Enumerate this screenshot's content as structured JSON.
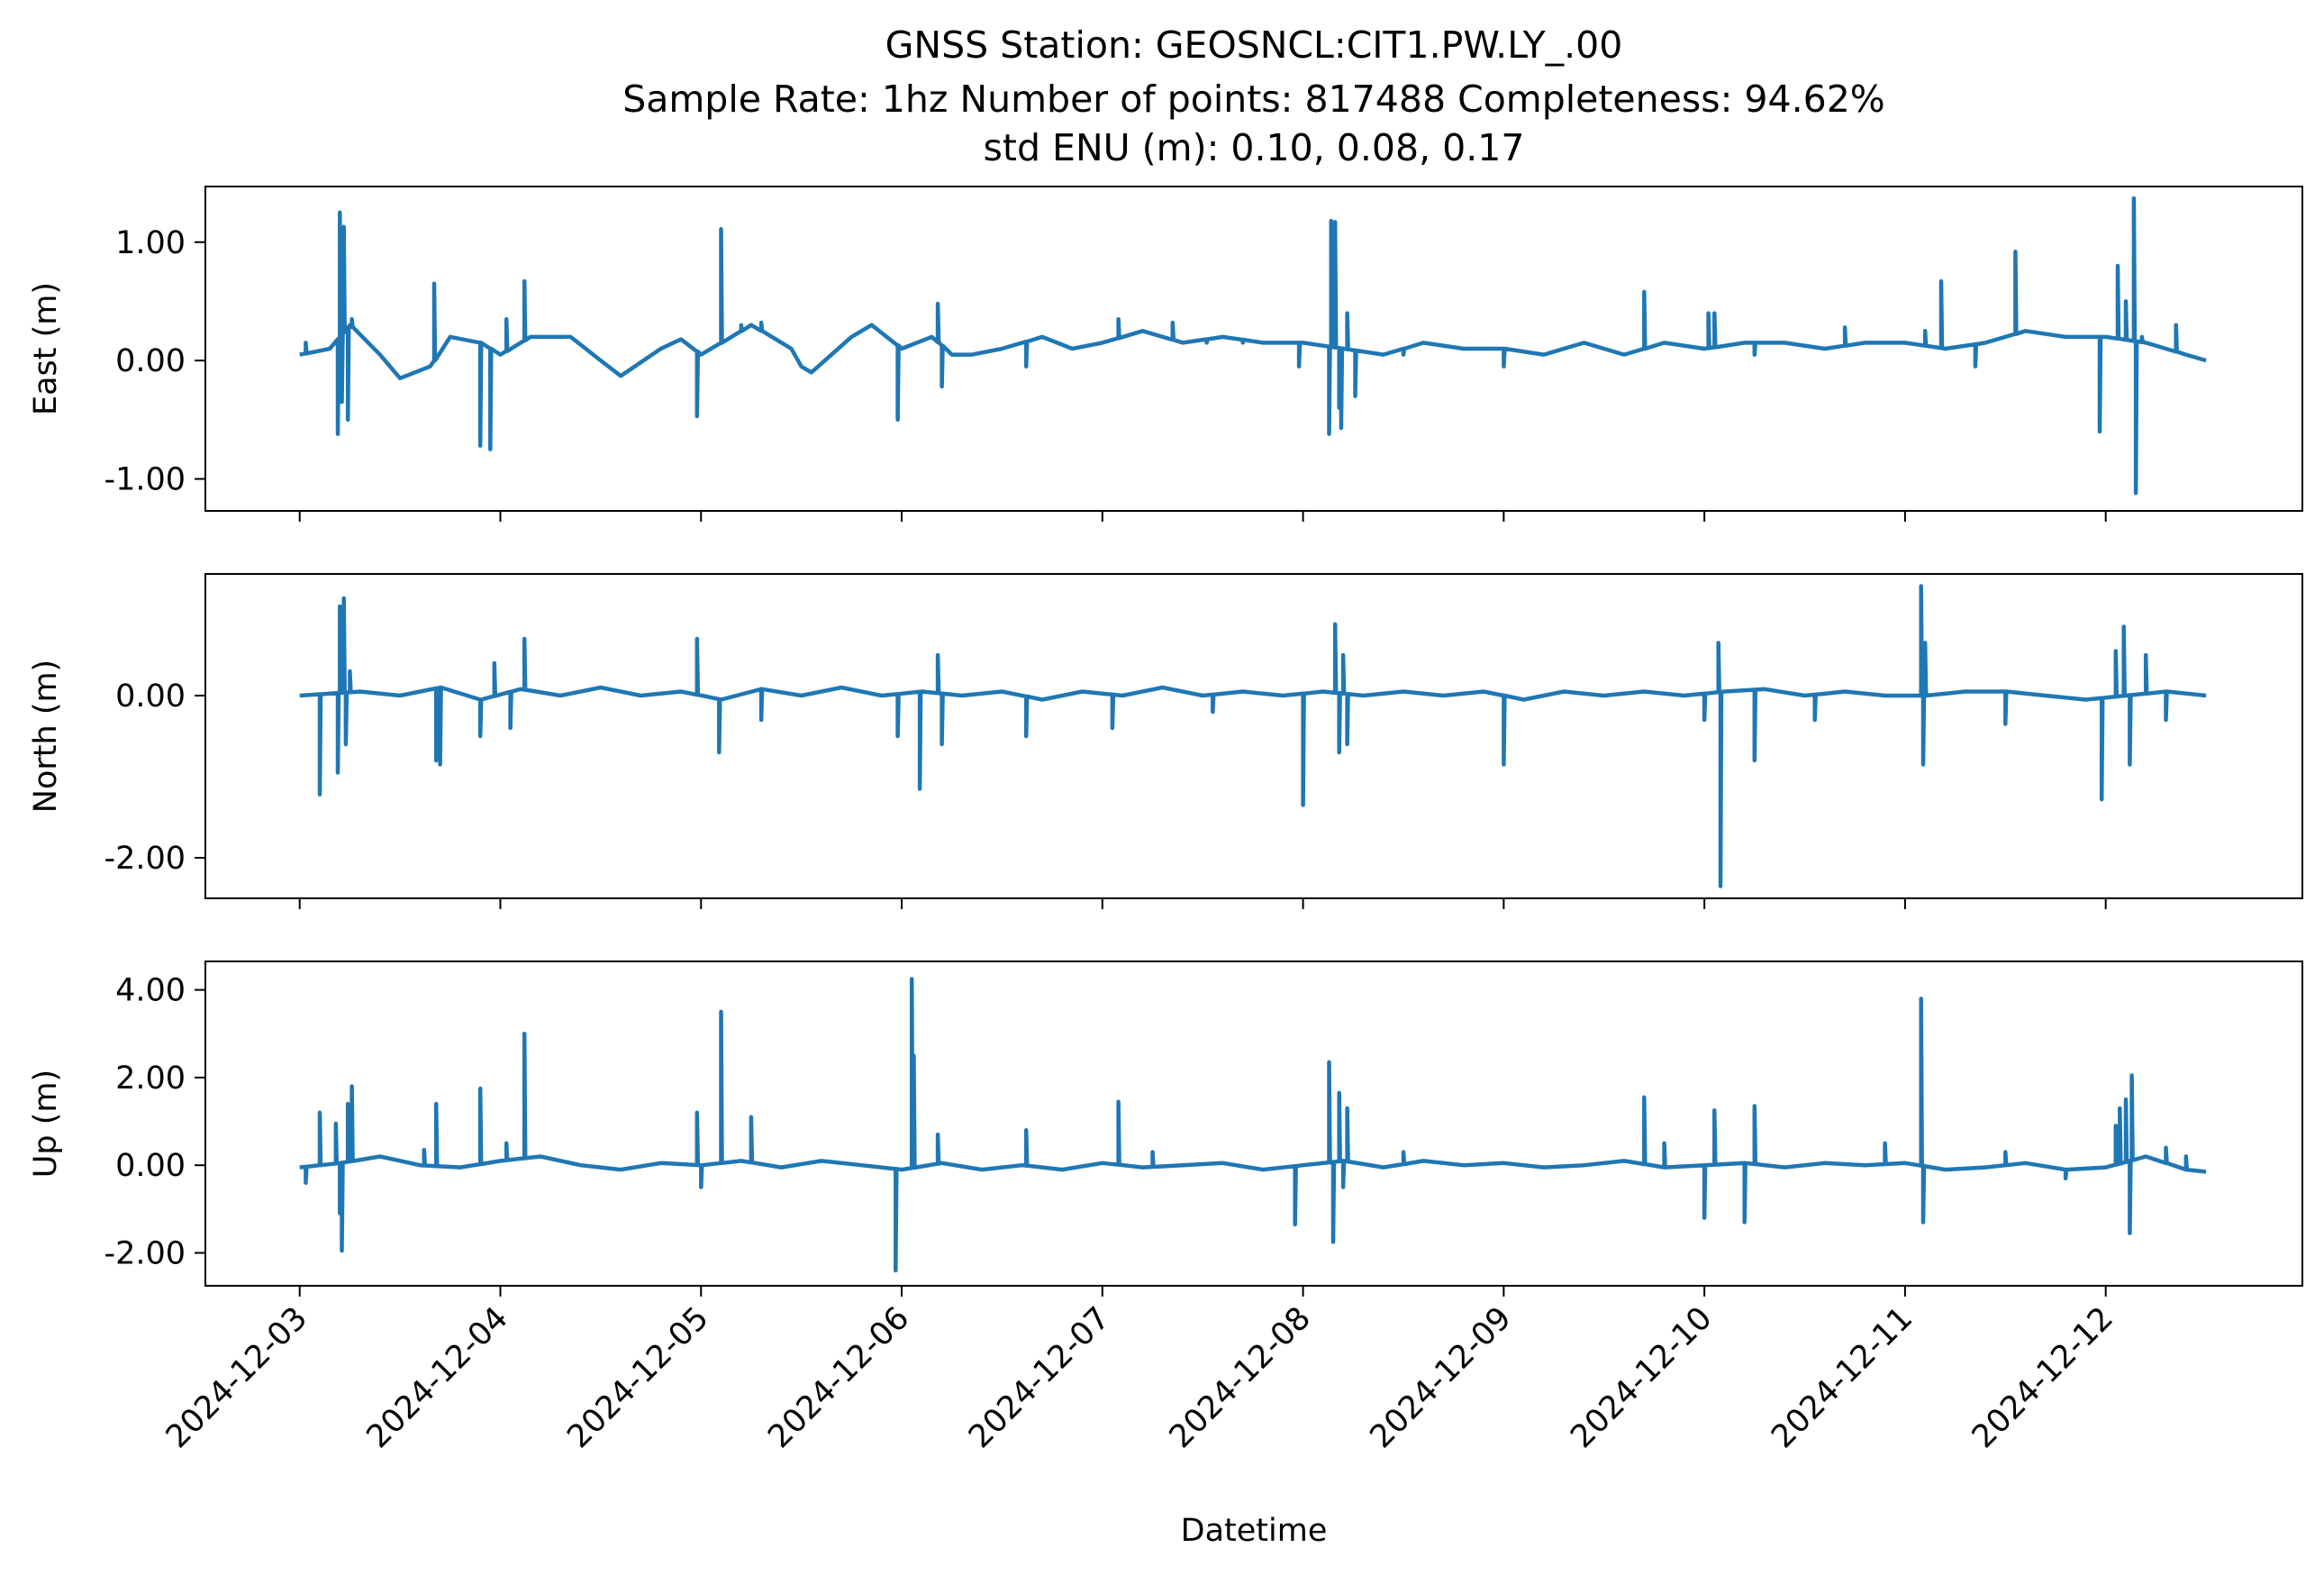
{
  "chart_data": {
    "type": "line",
    "title": "GNSS Station: GEOSNCL:CIT1.PW.LY_.00",
    "subtitle_line1": "Sample Rate: 1hz   Number of points: 817488    Completeness:  94.62%",
    "subtitle_line2": "std ENU (m):  0.10, 0.08, 0.17",
    "xlabel": "Datetime",
    "x_ticks": [
      "2024-12-03",
      "2024-12-04",
      "2024-12-05",
      "2024-12-06",
      "2024-12-07",
      "2024-12-08",
      "2024-12-09",
      "2024-12-10",
      "2024-12-11",
      "2024-12-12"
    ],
    "x_range_days": [
      -0.47,
      9.98
    ],
    "line_color": "#1f77b4",
    "grid": false,
    "panels": [
      {
        "ylabel": "East (m)",
        "ylim": [
          -1.27,
          1.47
        ],
        "yticks": [
          {
            "v": 1.0,
            "label": "1.00"
          },
          {
            "v": 0.0,
            "label": "0.00"
          },
          {
            "v": -1.0,
            "label": "-1.00"
          }
        ],
        "baseline": [
          [
            0.0,
            0.05
          ],
          [
            0.15,
            0.1
          ],
          [
            0.25,
            0.3
          ],
          [
            0.4,
            0.05
          ],
          [
            0.5,
            -0.15
          ],
          [
            0.65,
            -0.05
          ],
          [
            0.75,
            0.2
          ],
          [
            0.9,
            0.15
          ],
          [
            1.0,
            0.05
          ],
          [
            1.15,
            0.2
          ],
          [
            1.35,
            0.2
          ],
          [
            1.5,
            0.0
          ],
          [
            1.6,
            -0.13
          ],
          [
            1.8,
            0.1
          ],
          [
            1.9,
            0.18
          ],
          [
            2.0,
            0.05
          ],
          [
            2.1,
            0.15
          ],
          [
            2.25,
            0.3
          ],
          [
            2.45,
            0.1
          ],
          [
            2.5,
            -0.05
          ],
          [
            2.55,
            -0.1
          ],
          [
            2.75,
            0.2
          ],
          [
            2.85,
            0.3
          ],
          [
            3.0,
            0.1
          ],
          [
            3.15,
            0.2
          ],
          [
            3.25,
            0.05
          ],
          [
            3.35,
            0.05
          ],
          [
            3.5,
            0.1
          ],
          [
            3.7,
            0.2
          ],
          [
            3.85,
            0.1
          ],
          [
            4.0,
            0.15
          ],
          [
            4.2,
            0.25
          ],
          [
            4.4,
            0.15
          ],
          [
            4.6,
            0.2
          ],
          [
            4.8,
            0.15
          ],
          [
            5.0,
            0.15
          ],
          [
            5.2,
            0.1
          ],
          [
            5.4,
            0.05
          ],
          [
            5.6,
            0.15
          ],
          [
            5.8,
            0.1
          ],
          [
            6.0,
            0.1
          ],
          [
            6.2,
            0.05
          ],
          [
            6.4,
            0.15
          ],
          [
            6.6,
            0.05
          ],
          [
            6.8,
            0.15
          ],
          [
            7.0,
            0.1
          ],
          [
            7.2,
            0.15
          ],
          [
            7.4,
            0.15
          ],
          [
            7.6,
            0.1
          ],
          [
            7.8,
            0.15
          ],
          [
            8.0,
            0.15
          ],
          [
            8.2,
            0.1
          ],
          [
            8.4,
            0.15
          ],
          [
            8.6,
            0.25
          ],
          [
            8.8,
            0.2
          ],
          [
            9.0,
            0.2
          ],
          [
            9.2,
            0.15
          ],
          [
            9.4,
            0.05
          ],
          [
            9.5,
            0.0
          ]
        ],
        "spikes": [
          [
            0.03,
            0.15
          ],
          [
            0.19,
            -0.62
          ],
          [
            0.2,
            1.25
          ],
          [
            0.21,
            -0.35
          ],
          [
            0.22,
            1.13
          ],
          [
            0.24,
            -0.5
          ],
          [
            0.26,
            0.35
          ],
          [
            0.67,
            0.65
          ],
          [
            0.9,
            -0.72
          ],
          [
            0.95,
            -0.75
          ],
          [
            1.03,
            0.35
          ],
          [
            1.12,
            0.67
          ],
          [
            1.98,
            -0.47
          ],
          [
            2.1,
            1.11
          ],
          [
            2.2,
            0.3
          ],
          [
            2.3,
            0.32
          ],
          [
            2.98,
            -0.5
          ],
          [
            3.18,
            0.48
          ],
          [
            3.2,
            -0.22
          ],
          [
            3.62,
            -0.05
          ],
          [
            4.08,
            0.35
          ],
          [
            4.35,
            0.32
          ],
          [
            4.52,
            0.15
          ],
          [
            4.7,
            0.15
          ],
          [
            4.98,
            -0.05
          ],
          [
            5.13,
            -0.62
          ],
          [
            5.14,
            1.18
          ],
          [
            5.16,
            1.17
          ],
          [
            5.18,
            -0.4
          ],
          [
            5.19,
            -0.57
          ],
          [
            5.22,
            0.4
          ],
          [
            5.26,
            -0.3
          ],
          [
            5.5,
            0.05
          ],
          [
            6.0,
            -0.05
          ],
          [
            6.7,
            0.58
          ],
          [
            7.02,
            0.4
          ],
          [
            7.05,
            0.4
          ],
          [
            7.25,
            0.05
          ],
          [
            7.7,
            0.28
          ],
          [
            8.1,
            0.25
          ],
          [
            8.18,
            0.67
          ],
          [
            8.35,
            -0.05
          ],
          [
            8.55,
            0.92
          ],
          [
            8.97,
            -0.6
          ],
          [
            9.06,
            0.8
          ],
          [
            9.1,
            0.5
          ],
          [
            9.14,
            1.37
          ],
          [
            9.15,
            -1.12
          ],
          [
            9.18,
            0.2
          ],
          [
            9.35,
            0.3
          ]
        ]
      },
      {
        "ylabel": "North (m)",
        "ylim": [
          -2.5,
          1.5
        ],
        "yticks": [
          {
            "v": 0.0,
            "label": "0.00"
          },
          {
            "v": -2.0,
            "label": "-2.00"
          }
        ],
        "baseline": [
          [
            0.0,
            0.0
          ],
          [
            0.3,
            0.05
          ],
          [
            0.5,
            0.0
          ],
          [
            0.7,
            0.1
          ],
          [
            0.9,
            -0.05
          ],
          [
            1.1,
            0.08
          ],
          [
            1.3,
            0.0
          ],
          [
            1.5,
            0.1
          ],
          [
            1.7,
            0.0
          ],
          [
            1.9,
            0.05
          ],
          [
            2.1,
            -0.05
          ],
          [
            2.3,
            0.08
          ],
          [
            2.5,
            0.0
          ],
          [
            2.7,
            0.1
          ],
          [
            2.9,
            0.0
          ],
          [
            3.1,
            0.05
          ],
          [
            3.3,
            0.0
          ],
          [
            3.5,
            0.05
          ],
          [
            3.7,
            -0.05
          ],
          [
            3.9,
            0.05
          ],
          [
            4.1,
            0.0
          ],
          [
            4.3,
            0.1
          ],
          [
            4.5,
            0.0
          ],
          [
            4.7,
            0.05
          ],
          [
            4.9,
            0.0
          ],
          [
            5.1,
            0.05
          ],
          [
            5.3,
            0.0
          ],
          [
            5.5,
            0.05
          ],
          [
            5.7,
            0.0
          ],
          [
            5.9,
            0.05
          ],
          [
            6.1,
            -0.05
          ],
          [
            6.3,
            0.05
          ],
          [
            6.5,
            0.0
          ],
          [
            6.7,
            0.05
          ],
          [
            6.9,
            0.0
          ],
          [
            7.1,
            0.05
          ],
          [
            7.3,
            0.08
          ],
          [
            7.5,
            0.0
          ],
          [
            7.7,
            0.05
          ],
          [
            7.9,
            0.0
          ],
          [
            8.1,
            0.0
          ],
          [
            8.3,
            0.05
          ],
          [
            8.5,
            0.05
          ],
          [
            8.7,
            0.0
          ],
          [
            8.9,
            -0.05
          ],
          [
            9.1,
            0.0
          ],
          [
            9.3,
            0.05
          ],
          [
            9.5,
            0.0
          ]
        ],
        "spikes": [
          [
            0.1,
            -1.22
          ],
          [
            0.19,
            -0.95
          ],
          [
            0.2,
            1.1
          ],
          [
            0.22,
            1.2
          ],
          [
            0.23,
            -0.6
          ],
          [
            0.25,
            0.3
          ],
          [
            0.68,
            -0.8
          ],
          [
            0.7,
            -0.85
          ],
          [
            0.9,
            -0.5
          ],
          [
            0.97,
            0.4
          ],
          [
            1.05,
            -0.4
          ],
          [
            1.12,
            0.7
          ],
          [
            1.98,
            0.7
          ],
          [
            2.09,
            -0.7
          ],
          [
            2.3,
            -0.3
          ],
          [
            2.98,
            -0.5
          ],
          [
            3.09,
            -1.15
          ],
          [
            3.18,
            0.5
          ],
          [
            3.2,
            -0.6
          ],
          [
            3.62,
            -0.5
          ],
          [
            4.05,
            -0.4
          ],
          [
            4.55,
            -0.2
          ],
          [
            5.0,
            -1.35
          ],
          [
            5.16,
            0.88
          ],
          [
            5.18,
            -0.7
          ],
          [
            5.2,
            0.5
          ],
          [
            5.22,
            -0.6
          ],
          [
            6.0,
            -0.85
          ],
          [
            7.0,
            -0.3
          ],
          [
            7.07,
            0.65
          ],
          [
            7.08,
            -2.35
          ],
          [
            7.25,
            -0.8
          ],
          [
            7.55,
            -0.3
          ],
          [
            8.08,
            1.35
          ],
          [
            8.09,
            -0.85
          ],
          [
            8.1,
            0.65
          ],
          [
            8.5,
            -0.35
          ],
          [
            8.98,
            -1.28
          ],
          [
            9.05,
            0.55
          ],
          [
            9.09,
            0.85
          ],
          [
            9.12,
            -0.85
          ],
          [
            9.2,
            0.5
          ],
          [
            9.3,
            -0.3
          ]
        ]
      },
      {
        "ylabel": "Up (m)",
        "ylim": [
          -2.75,
          4.65
        ],
        "yticks": [
          {
            "v": 4.0,
            "label": "4.00"
          },
          {
            "v": 2.0,
            "label": "2.00"
          },
          {
            "v": 0.0,
            "label": "0.00"
          },
          {
            "v": -2.0,
            "label": "-2.00"
          }
        ],
        "baseline": [
          [
            0.0,
            -0.05
          ],
          [
            0.2,
            0.05
          ],
          [
            0.4,
            0.2
          ],
          [
            0.6,
            0.0
          ],
          [
            0.8,
            -0.05
          ],
          [
            1.0,
            0.1
          ],
          [
            1.2,
            0.2
          ],
          [
            1.4,
            0.0
          ],
          [
            1.6,
            -0.1
          ],
          [
            1.8,
            0.05
          ],
          [
            2.0,
            0.0
          ],
          [
            2.2,
            0.1
          ],
          [
            2.4,
            -0.05
          ],
          [
            2.6,
            0.1
          ],
          [
            2.8,
            0.0
          ],
          [
            3.0,
            -0.1
          ],
          [
            3.2,
            0.05
          ],
          [
            3.4,
            -0.1
          ],
          [
            3.6,
            0.0
          ],
          [
            3.8,
            -0.1
          ],
          [
            4.0,
            0.05
          ],
          [
            4.2,
            -0.05
          ],
          [
            4.4,
            0.0
          ],
          [
            4.6,
            0.05
          ],
          [
            4.8,
            -0.1
          ],
          [
            5.0,
            0.0
          ],
          [
            5.2,
            0.1
          ],
          [
            5.4,
            -0.05
          ],
          [
            5.6,
            0.1
          ],
          [
            5.8,
            0.0
          ],
          [
            6.0,
            0.05
          ],
          [
            6.2,
            -0.05
          ],
          [
            6.4,
            0.0
          ],
          [
            6.6,
            0.1
          ],
          [
            6.8,
            -0.05
          ],
          [
            7.0,
            0.0
          ],
          [
            7.2,
            0.05
          ],
          [
            7.4,
            -0.05
          ],
          [
            7.6,
            0.05
          ],
          [
            7.8,
            0.0
          ],
          [
            8.0,
            0.05
          ],
          [
            8.2,
            -0.1
          ],
          [
            8.4,
            -0.05
          ],
          [
            8.6,
            0.05
          ],
          [
            8.8,
            -0.1
          ],
          [
            9.0,
            -0.05
          ],
          [
            9.2,
            0.2
          ],
          [
            9.4,
            -0.1
          ],
          [
            9.5,
            -0.15
          ]
        ],
        "spikes": [
          [
            0.03,
            -0.4
          ],
          [
            0.1,
            1.2
          ],
          [
            0.18,
            0.95
          ],
          [
            0.2,
            -1.1
          ],
          [
            0.21,
            -1.95
          ],
          [
            0.24,
            1.4
          ],
          [
            0.26,
            1.8
          ],
          [
            0.62,
            0.35
          ],
          [
            0.68,
            1.4
          ],
          [
            0.9,
            1.75
          ],
          [
            1.03,
            0.5
          ],
          [
            1.12,
            3.0
          ],
          [
            1.98,
            1.2
          ],
          [
            2.0,
            -0.5
          ],
          [
            2.1,
            3.5
          ],
          [
            2.25,
            1.1
          ],
          [
            2.97,
            -2.4
          ],
          [
            3.05,
            4.25
          ],
          [
            3.06,
            2.5
          ],
          [
            3.18,
            0.7
          ],
          [
            3.62,
            0.8
          ],
          [
            4.08,
            1.45
          ],
          [
            4.25,
            0.3
          ],
          [
            4.96,
            -1.35
          ],
          [
            5.13,
            2.35
          ],
          [
            5.15,
            -1.75
          ],
          [
            5.18,
            1.65
          ],
          [
            5.2,
            -0.5
          ],
          [
            5.22,
            1.3
          ],
          [
            5.5,
            0.3
          ],
          [
            6.7,
            1.55
          ],
          [
            6.8,
            0.5
          ],
          [
            7.0,
            -1.2
          ],
          [
            7.05,
            1.25
          ],
          [
            7.2,
            -1.3
          ],
          [
            7.25,
            1.35
          ],
          [
            7.9,
            0.5
          ],
          [
            8.08,
            3.8
          ],
          [
            8.09,
            -1.3
          ],
          [
            8.5,
            0.3
          ],
          [
            8.8,
            -0.3
          ],
          [
            9.05,
            0.9
          ],
          [
            9.07,
            1.3
          ],
          [
            9.1,
            1.5
          ],
          [
            9.12,
            -1.55
          ],
          [
            9.13,
            2.05
          ],
          [
            9.3,
            0.4
          ],
          [
            9.4,
            0.2
          ]
        ]
      }
    ]
  }
}
